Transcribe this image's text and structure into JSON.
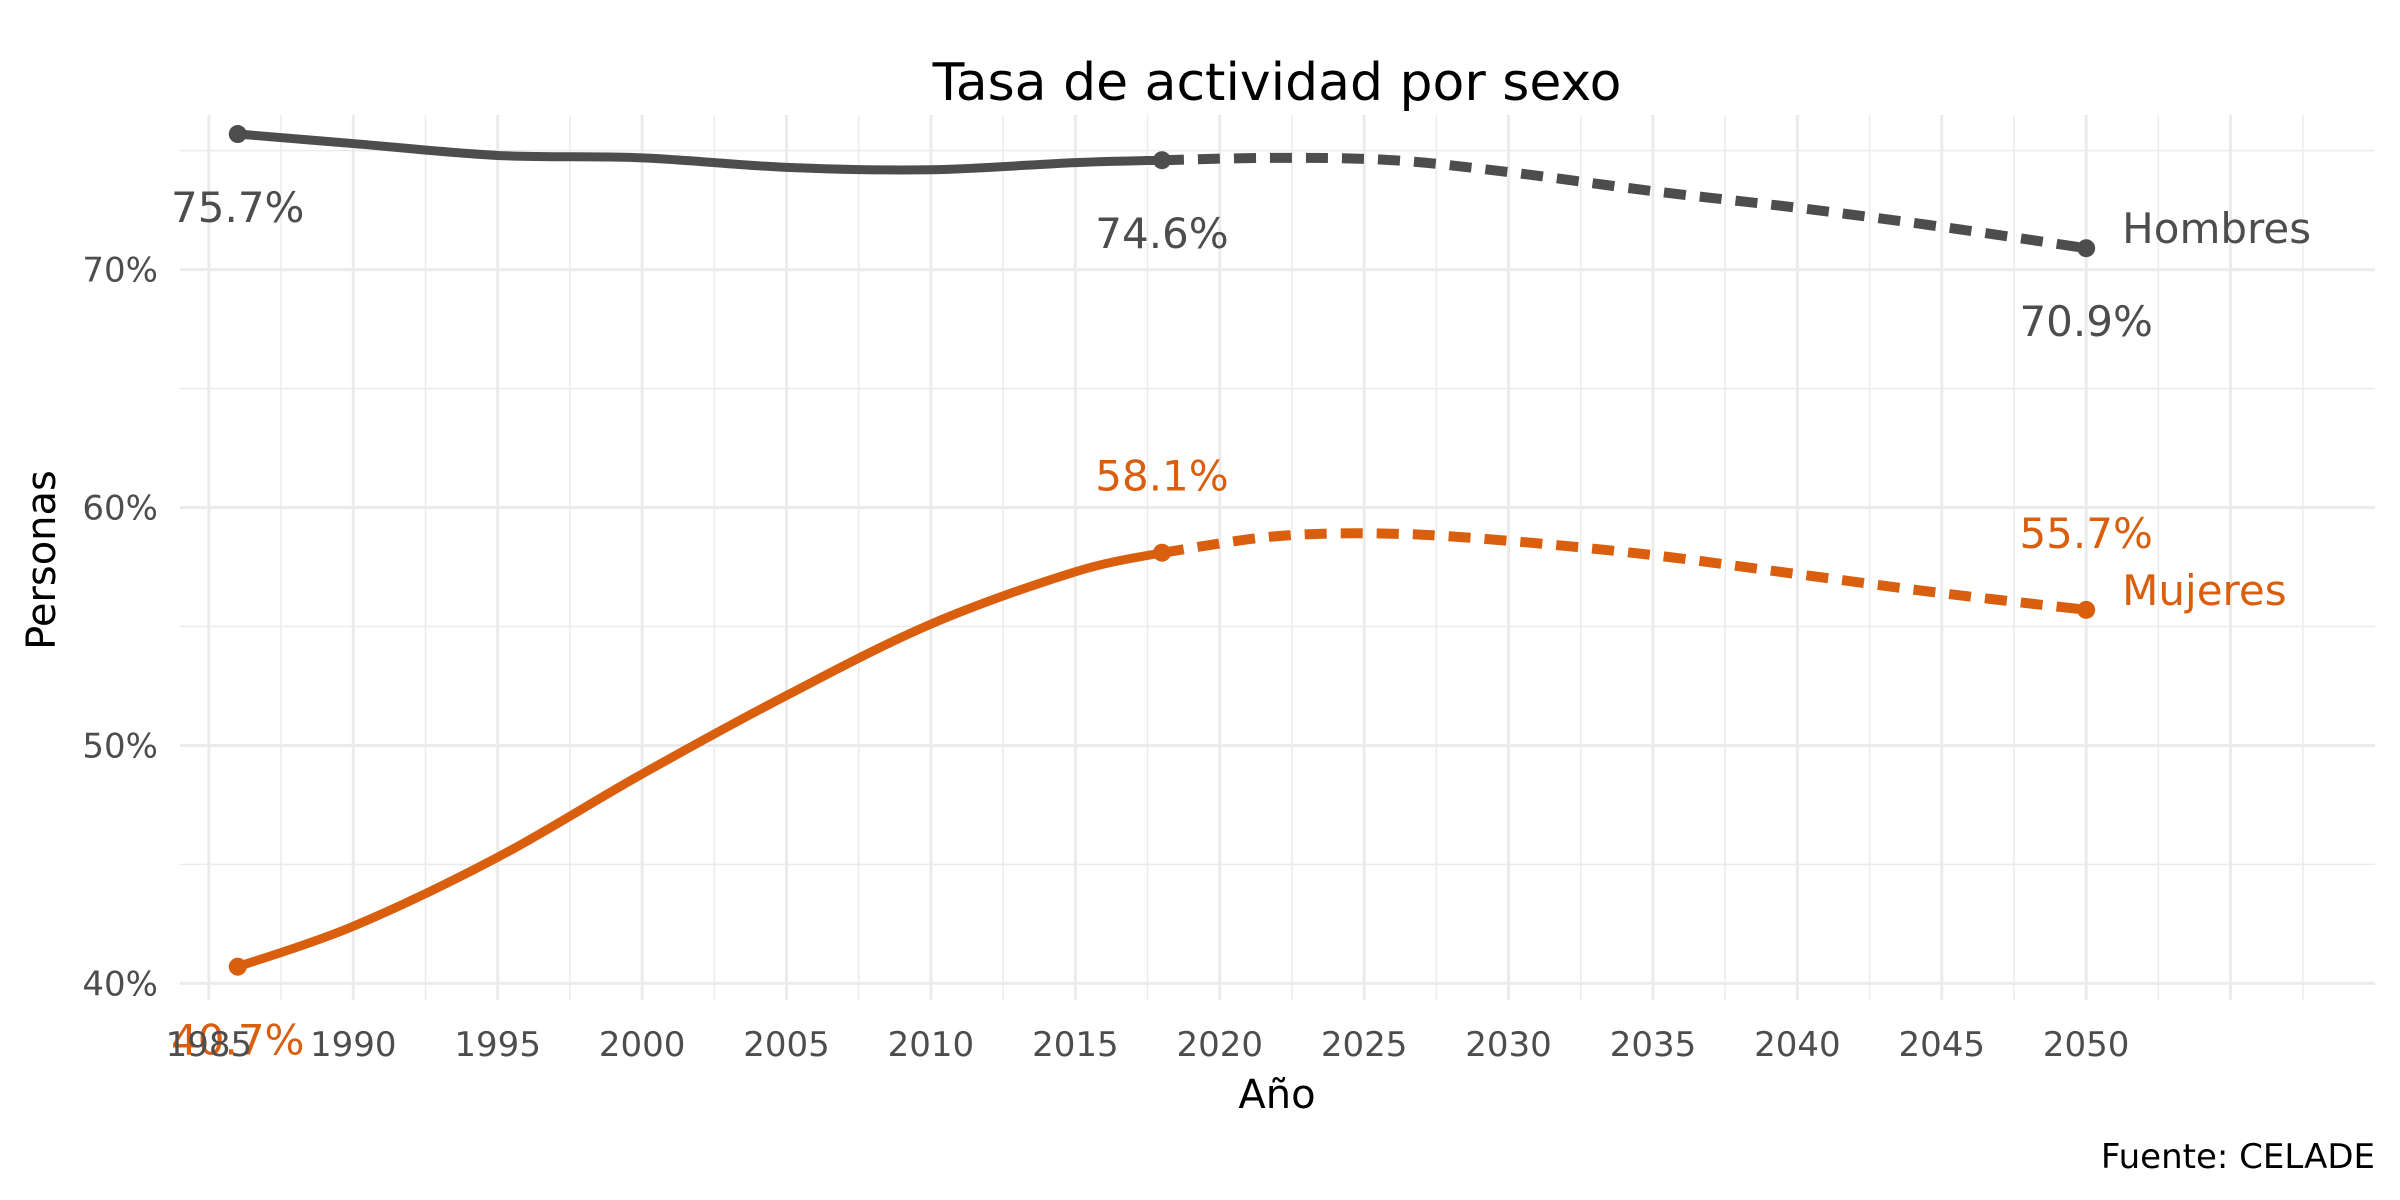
{
  "chart_data": {
    "type": "line",
    "title": "Tasa de actividad por sexo",
    "xlabel": "Año",
    "ylabel": "Personas",
    "caption": "Fuente: CELADE",
    "xlim": [
      1984,
      2060
    ],
    "ylim": [
      39.3,
      76.5
    ],
    "x_ticks": [
      1985,
      1990,
      1995,
      2000,
      2005,
      2010,
      2015,
      2020,
      2025,
      2030,
      2035,
      2040,
      2045,
      2050
    ],
    "y_ticks": [
      {
        "value": 40,
        "label": "40%"
      },
      {
        "value": 50,
        "label": "50%"
      },
      {
        "value": 60,
        "label": "60%"
      },
      {
        "value": 70,
        "label": "70%"
      }
    ],
    "grid": true,
    "legend": "direct labels at line ends",
    "series": [
      {
        "name": "Hombres",
        "color": "#4d4d4d",
        "observed": {
          "x": [
            1986,
            1990,
            1995,
            2000,
            2005,
            2010,
            2015,
            2018
          ],
          "y": [
            75.7,
            75.3,
            74.8,
            74.7,
            74.3,
            74.2,
            74.5,
            74.6
          ]
        },
        "projected": {
          "x": [
            2018,
            2022,
            2026,
            2030,
            2035,
            2040,
            2045,
            2050
          ],
          "y": [
            74.6,
            74.7,
            74.6,
            74.1,
            73.3,
            72.6,
            71.8,
            70.9
          ]
        },
        "point_labels": [
          {
            "x": 1986,
            "y": 75.7,
            "label": "75.7%"
          },
          {
            "x": 2018,
            "y": 74.6,
            "label": "74.6%"
          },
          {
            "x": 2050,
            "y": 70.9,
            "label": "70.9%"
          }
        ]
      },
      {
        "name": "Mujeres",
        "color": "#d95f0e",
        "observed": {
          "x": [
            1986,
            1990,
            1995,
            2000,
            2005,
            2010,
            2015,
            2018
          ],
          "y": [
            40.7,
            42.4,
            45.3,
            48.8,
            52.1,
            55.1,
            57.3,
            58.1
          ]
        },
        "projected": {
          "x": [
            2018,
            2022,
            2026,
            2030,
            2035,
            2040,
            2045,
            2050
          ],
          "y": [
            58.1,
            58.8,
            58.9,
            58.6,
            58.0,
            57.2,
            56.4,
            55.7
          ]
        },
        "point_labels": [
          {
            "x": 1986,
            "y": 40.7,
            "label": "40.7%"
          },
          {
            "x": 2018,
            "y": 58.1,
            "label": "58.1%"
          },
          {
            "x": 2050,
            "y": 55.7,
            "label": "55.7%"
          }
        ]
      }
    ]
  }
}
